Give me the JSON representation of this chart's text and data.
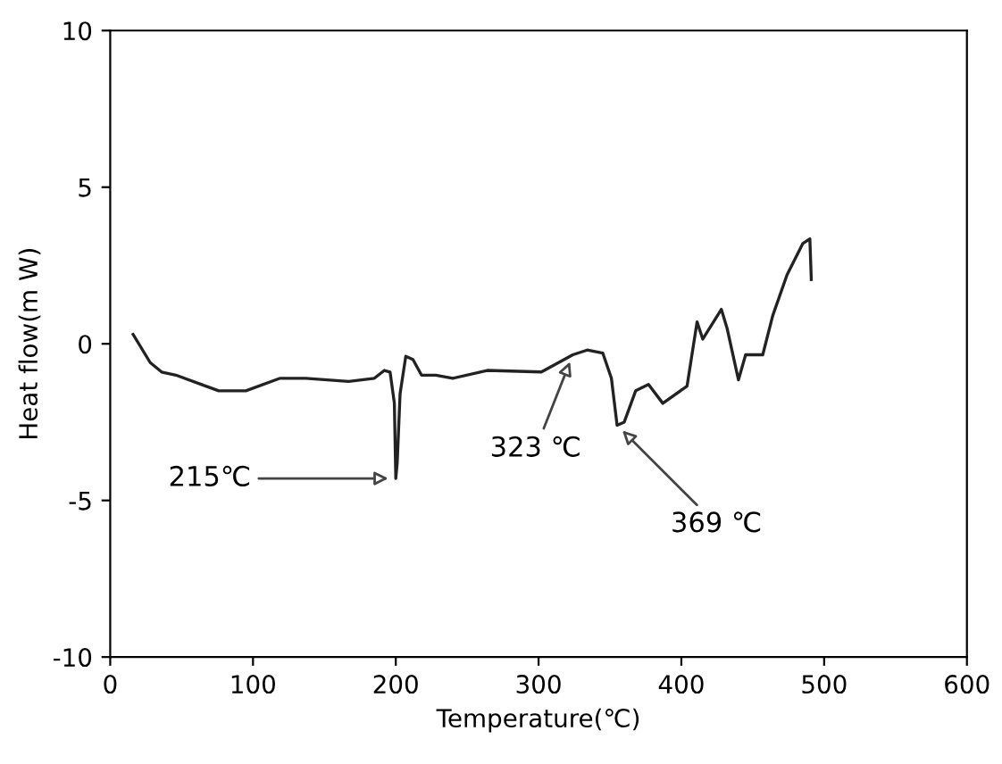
{
  "chart_data": {
    "type": "line",
    "xlabel": "Temperature(℃)",
    "ylabel": "Heat flow(m W)",
    "xlim": [
      0,
      600
    ],
    "xticks": [
      0,
      100,
      200,
      300,
      400,
      500,
      600
    ],
    "ylim": [
      -10,
      10
    ],
    "yticks": [
      -10,
      -5,
      0,
      5,
      10
    ],
    "grid": false,
    "legend": false,
    "marker": "none",
    "line_style": "solid",
    "series": [
      {
        "color": "#222222",
        "x": [
          16,
          28,
          36,
          46,
          64,
          76,
          95,
          119,
          137,
          167,
          185,
          192,
          196,
          199,
          200,
          201,
          203,
          207,
          212,
          218,
          228,
          240,
          264,
          302,
          324,
          334,
          345,
          351,
          355,
          360,
          368,
          377,
          387,
          404,
          411,
          415,
          428,
          432,
          440,
          445,
          457,
          464,
          474,
          485,
          490,
          491
        ],
        "values": [
          0.3,
          -0.6,
          -0.9,
          -1.0,
          -1.3,
          -1.5,
          -1.5,
          -1.1,
          -1.1,
          -1.2,
          -1.1,
          -0.85,
          -0.9,
          -1.9,
          -4.3,
          -3.8,
          -1.6,
          -0.4,
          -0.5,
          -1.0,
          -1.0,
          -1.1,
          -0.85,
          -0.9,
          -0.35,
          -0.2,
          -0.3,
          -1.1,
          -2.6,
          -2.5,
          -1.5,
          -1.3,
          -1.9,
          -1.35,
          0.7,
          0.15,
          1.1,
          0.5,
          -1.15,
          -0.35,
          -0.35,
          0.9,
          2.2,
          3.2,
          3.35,
          2.05
        ]
      }
    ],
    "annotations": [
      {
        "text": "215℃",
        "x": 200,
        "y": -4.3
      },
      {
        "text": "323 ℃",
        "x": 324,
        "y": -0.35
      },
      {
        "text": "369 ℃",
        "x": 355,
        "y": -2.6
      }
    ]
  }
}
